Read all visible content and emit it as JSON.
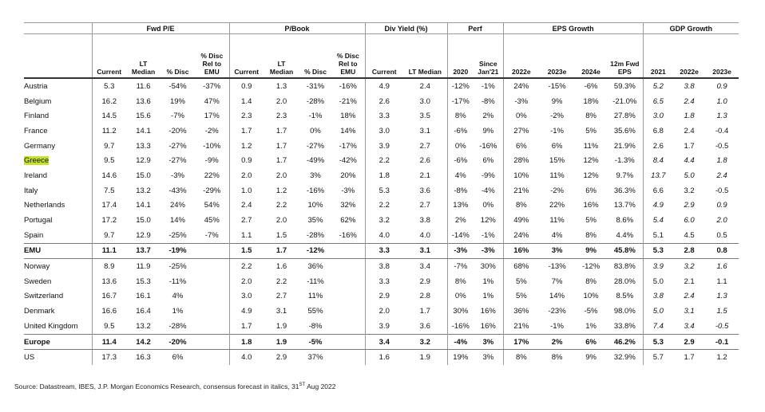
{
  "header": {
    "groups": [
      "Fwd P/E",
      "P/Book",
      "Div Yield (%)",
      "Perf",
      "EPS Growth",
      "GDP Growth"
    ],
    "columns": [
      "Current",
      "LT Median",
      "% Disc",
      "% Disc Rel to EMU",
      "Current",
      "LT Median",
      "% Disc",
      "% Disc Rel to EMU",
      "Current",
      "LT Median",
      "2020",
      "Since Jan'21",
      "2022e",
      "2023e",
      "2024e",
      "12m Fwd EPS",
      "2021",
      "2022e",
      "2023e"
    ]
  },
  "table": {
    "rows": [
      {
        "label": "Austria",
        "values": [
          "5.3",
          "11.6",
          "-54%",
          "-37%",
          "0.9",
          "1.3",
          "-31%",
          "-16%",
          "4.9",
          "2.4",
          "-12%",
          "-1%",
          "24%",
          "-15%",
          "-6%",
          "59.3%",
          "5.2",
          "3.8",
          "0.9"
        ]
      },
      {
        "label": "Belgium",
        "values": [
          "16.2",
          "13.6",
          "19%",
          "47%",
          "1.4",
          "2.0",
          "-28%",
          "-21%",
          "2.6",
          "3.0",
          "-17%",
          "-8%",
          "-3%",
          "9%",
          "18%",
          "-21.0%",
          "6.5",
          "2.4",
          "1.0"
        ]
      },
      {
        "label": "Finland",
        "values": [
          "14.5",
          "15.6",
          "-7%",
          "17%",
          "2.3",
          "2.3",
          "-1%",
          "18%",
          "3.3",
          "3.5",
          "8%",
          "2%",
          "0%",
          "-2%",
          "8%",
          "27.8%",
          "3.0",
          "1.8",
          "1.3"
        ]
      },
      {
        "label": "France",
        "values": [
          "11.2",
          "14.1",
          "-20%",
          "-2%",
          "1.7",
          "1.7",
          "0%",
          "14%",
          "3.0",
          "3.1",
          "-6%",
          "9%",
          "27%",
          "-1%",
          "5%",
          "35.6%",
          "6.8",
          "2.4",
          "-0.4"
        ]
      },
      {
        "label": "Germany",
        "values": [
          "9.7",
          "13.3",
          "-27%",
          "-10%",
          "1.2",
          "1.7",
          "-27%",
          "-17%",
          "3.9",
          "2.7",
          "0%",
          "-16%",
          "6%",
          "6%",
          "11%",
          "21.9%",
          "2.6",
          "1.7",
          "-0.5"
        ]
      },
      {
        "label": "Greece",
        "values": [
          "9.5",
          "12.9",
          "-27%",
          "-9%",
          "0.9",
          "1.7",
          "-49%",
          "-42%",
          "2.2",
          "2.6",
          "-6%",
          "6%",
          "28%",
          "15%",
          "12%",
          "-1.3%",
          "8.4",
          "4.4",
          "1.8"
        ]
      },
      {
        "label": "Ireland",
        "values": [
          "14.6",
          "15.0",
          "-3%",
          "22%",
          "2.0",
          "2.0",
          "3%",
          "20%",
          "1.8",
          "2.1",
          "4%",
          "-9%",
          "10%",
          "11%",
          "12%",
          "9.7%",
          "13.7",
          "5.0",
          "2.4"
        ]
      },
      {
        "label": "Italy",
        "values": [
          "7.5",
          "13.2",
          "-43%",
          "-29%",
          "1.0",
          "1.2",
          "-16%",
          "-3%",
          "5.3",
          "3.6",
          "-8%",
          "-4%",
          "21%",
          "-2%",
          "6%",
          "36.3%",
          "6.6",
          "3.2",
          "-0.5"
        ]
      },
      {
        "label": "Netherlands",
        "values": [
          "17.4",
          "14.1",
          "24%",
          "54%",
          "2.4",
          "2.2",
          "10%",
          "32%",
          "2.2",
          "2.7",
          "13%",
          "0%",
          "8%",
          "22%",
          "16%",
          "13.7%",
          "4.9",
          "2.9",
          "0.9"
        ]
      },
      {
        "label": "Portugal",
        "values": [
          "17.2",
          "15.0",
          "14%",
          "45%",
          "2.7",
          "2.0",
          "35%",
          "62%",
          "3.2",
          "3.8",
          "2%",
          "12%",
          "49%",
          "11%",
          "5%",
          "8.6%",
          "5.4",
          "6.0",
          "2.0"
        ]
      },
      {
        "label": "Spain",
        "values": [
          "9.7",
          "12.9",
          "-25%",
          "-7%",
          "1.1",
          "1.5",
          "-28%",
          "-16%",
          "4.0",
          "4.0",
          "-14%",
          "-1%",
          "24%",
          "4%",
          "8%",
          "4.4%",
          "5.1",
          "4.5",
          "0.5"
        ]
      },
      {
        "label": "EMU",
        "values": [
          "11.1",
          "13.7",
          "-19%",
          null,
          "1.5",
          "1.7",
          "-12%",
          null,
          "3.3",
          "3.1",
          "-3%",
          "-3%",
          "16%",
          "3%",
          "9%",
          "45.8%",
          "5.3",
          "2.8",
          "0.8"
        ]
      },
      {
        "label": "Norway",
        "values": [
          "8.9",
          "11.9",
          "-25%",
          null,
          "2.2",
          "1.6",
          "36%",
          null,
          "3.8",
          "3.4",
          "-7%",
          "30%",
          "68%",
          "-13%",
          "-12%",
          "83.8%",
          "3.9",
          "3.2",
          "1.6"
        ]
      },
      {
        "label": "Sweden",
        "values": [
          "13.6",
          "15.3",
          "-11%",
          null,
          "2.0",
          "2.2",
          "-11%",
          null,
          "3.3",
          "2.9",
          "8%",
          "1%",
          "5%",
          "7%",
          "8%",
          "28.0%",
          "5.0",
          "2.1",
          "1.1"
        ]
      },
      {
        "label": "Switzerland",
        "values": [
          "16.7",
          "16.1",
          "4%",
          null,
          "3.0",
          "2.7",
          "11%",
          null,
          "2.9",
          "2.8",
          "0%",
          "1%",
          "5%",
          "14%",
          "10%",
          "8.5%",
          "3.8",
          "2.4",
          "1.3"
        ]
      },
      {
        "label": "Denmark",
        "values": [
          "16.6",
          "16.4",
          "1%",
          null,
          "4.9",
          "3.1",
          "55%",
          null,
          "2.0",
          "1.7",
          "30%",
          "16%",
          "36%",
          "-23%",
          "-5%",
          "98.0%",
          "5.0",
          "3.1",
          "1.5"
        ]
      },
      {
        "label": "United Kingdom",
        "values": [
          "9.5",
          "13.2",
          "-28%",
          null,
          "1.7",
          "1.9",
          "-8%",
          null,
          "3.9",
          "3.6",
          "-16%",
          "16%",
          "21%",
          "-1%",
          "1%",
          "33.8%",
          "7.4",
          "3.4",
          "-0.5"
        ]
      },
      {
        "label": "Europe",
        "values": [
          "11.4",
          "14.2",
          "-20%",
          null,
          "1.8",
          "1.9",
          "-5%",
          null,
          "3.4",
          "3.2",
          "-4%",
          "3%",
          "17%",
          "2%",
          "6%",
          "46.2%",
          "5.3",
          "2.9",
          "-0.1"
        ]
      },
      {
        "label": "US",
        "values": [
          "17.3",
          "16.3",
          "6%",
          null,
          "4.0",
          "2.9",
          "37%",
          null,
          "1.6",
          "1.9",
          "19%",
          "3%",
          "8%",
          "8%",
          "9%",
          "32.9%",
          "5.7",
          "1.7",
          "1.2"
        ]
      }
    ]
  },
  "footer": {
    "text": "Source: Datastream, IBES, J.P. Morgan Economics Research, consensus forecast in italics, 31",
    "sup": "ST",
    "text_after": " Aug 2022"
  }
}
